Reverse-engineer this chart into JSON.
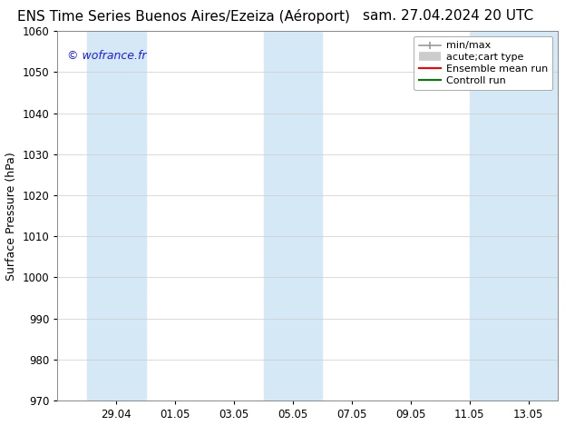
{
  "title_left": "ENS Time Series Buenos Aires/Ezeiza (Aéroport)",
  "title_right": "sam. 27.04.2024 20 UTC",
  "ylabel": "Surface Pressure (hPa)",
  "ylim": [
    970,
    1060
  ],
  "yticks": [
    970,
    980,
    990,
    1000,
    1010,
    1020,
    1030,
    1040,
    1050,
    1060
  ],
  "xtick_labels": [
    "29.04",
    "01.05",
    "03.05",
    "05.05",
    "07.05",
    "09.05",
    "11.05",
    "13.05"
  ],
  "watermark": "© wofrance.fr",
  "watermark_color": "#1a1aff",
  "bg_color": "#ffffff",
  "plot_bg_color": "#ffffff",
  "band_color": "#d5e8f5",
  "legend_labels": [
    "min/max",
    "acute;cart type",
    "Ensemble mean run",
    "Controll run"
  ],
  "legend_colors": [
    "#999999",
    "#cccccc",
    "#ff0000",
    "#008000"
  ],
  "title_fontsize": 11,
  "tick_fontsize": 8.5,
  "ylabel_fontsize": 9,
  "legend_fontsize": 8,
  "grid_color": "#cccccc",
  "grid_lw": 0.5,
  "spine_color": "#888888"
}
